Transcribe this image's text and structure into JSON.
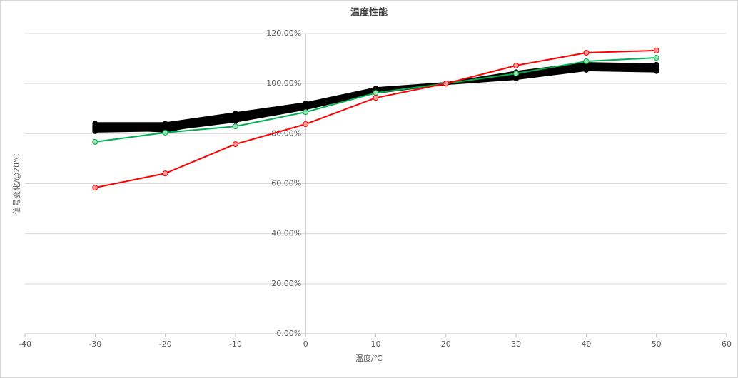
{
  "chart_data": {
    "type": "line",
    "title": "温度性能",
    "x_label": "温度/℃",
    "y_label": "信号变化/@20℃",
    "x": [
      -30,
      -20,
      -10,
      0,
      10,
      20,
      30,
      40,
      50
    ],
    "series": [
      {
        "color": "#000000",
        "values": [
          81,
          81.5,
          85,
          90,
          96.5,
          100,
          102,
          105.5,
          105
        ]
      },
      {
        "color": "#000000",
        "values": [
          82,
          82.5,
          86,
          91,
          97,
          100,
          103,
          106,
          105.5
        ]
      },
      {
        "color": "#000000",
        "values": [
          83,
          83.5,
          87,
          91.5,
          97.5,
          100,
          103.5,
          107,
          106.5
        ]
      },
      {
        "color": "#000000",
        "values": [
          84,
          84,
          88,
          92,
          98,
          100,
          104.5,
          108,
          107.5
        ]
      },
      {
        "color": "#000000",
        "values": [
          82.5,
          81,
          86.5,
          90.5,
          97,
          100,
          102.5,
          106.5,
          106
        ]
      },
      {
        "color": "#00b050",
        "values": [
          76.7,
          80.4,
          82.9,
          88.6,
          96.3,
          100,
          104,
          108.9,
          110.3
        ]
      },
      {
        "color": "#ff0000",
        "values": [
          58.4,
          64.1,
          75.8,
          83.8,
          94.3,
          100,
          107.2,
          112.3,
          113.2
        ]
      }
    ],
    "xlim": [
      -40,
      60
    ],
    "xticks": [
      -40,
      -30,
      -20,
      -10,
      0,
      10,
      20,
      30,
      40,
      50,
      60
    ],
    "ylim": [
      0,
      120
    ],
    "yticks": [
      {
        "value": 0,
        "label": "0.00%"
      },
      {
        "value": 20,
        "label": "20.00%"
      },
      {
        "value": 40,
        "label": "40.00%"
      },
      {
        "value": 60,
        "label": "60.00%"
      },
      {
        "value": 80,
        "label": "80.00%"
      },
      {
        "value": 100,
        "label": "100.00%"
      },
      {
        "value": 120,
        "label": "120.00%"
      }
    ],
    "grid": true
  }
}
